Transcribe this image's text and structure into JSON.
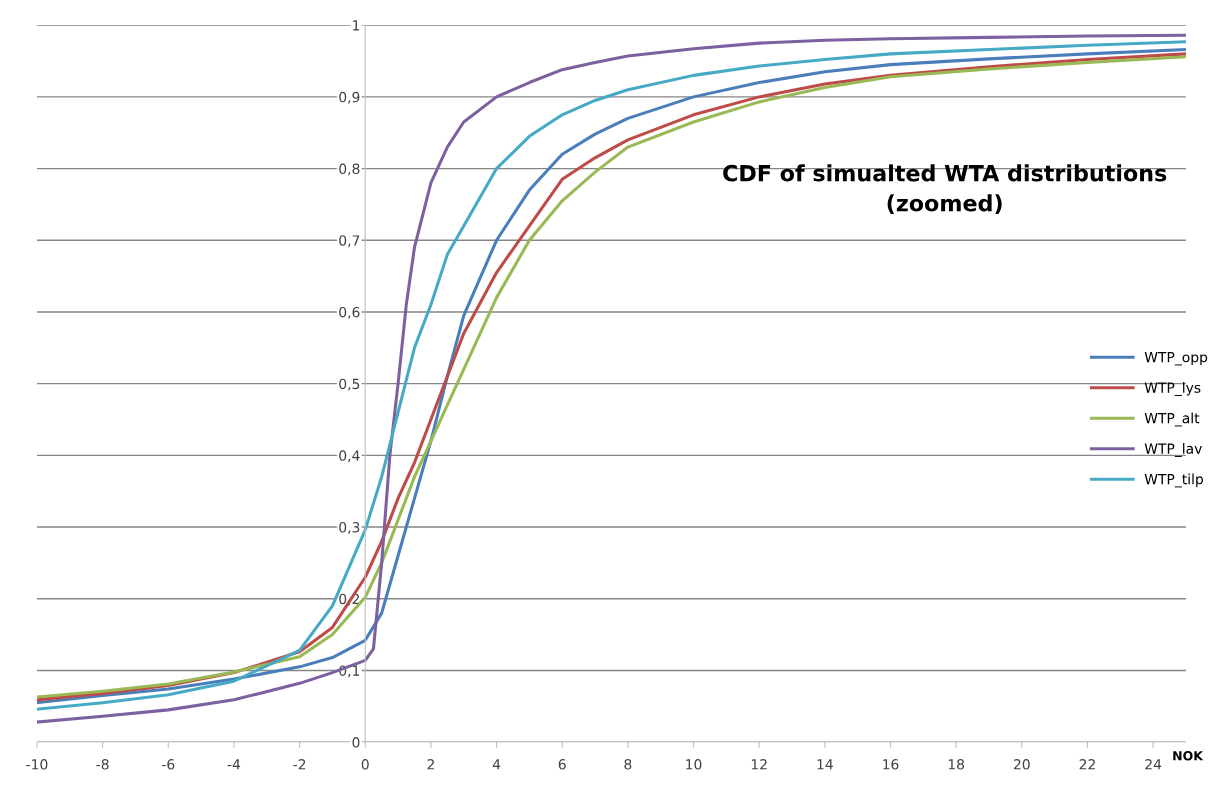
{
  "chart_data": {
    "type": "line",
    "title": "CDF of simualted WTA distributions\n(zoomed)",
    "xlabel": "NOK",
    "xlim": [
      -10,
      25
    ],
    "xticks": [
      -10,
      -8,
      -6,
      -4,
      -2,
      0,
      2,
      4,
      6,
      8,
      10,
      12,
      14,
      16,
      18,
      20,
      22,
      24
    ],
    "ylim": [
      0,
      1
    ],
    "yticks": [
      0,
      {
        "value": 0.1,
        "label": "0,1"
      },
      {
        "value": 0.2,
        "label": "0,2"
      },
      {
        "value": 0.3,
        "label": "0,3"
      },
      {
        "value": 0.4,
        "label": "0,4"
      },
      {
        "value": 0.5,
        "label": "0,5"
      },
      {
        "value": 0.6,
        "label": "0,6"
      },
      {
        "value": 0.7,
        "label": "0,7"
      },
      {
        "value": 0.8,
        "label": "0,8"
      },
      {
        "value": 0.9,
        "label": "0,9"
      },
      1
    ],
    "grid": "y",
    "legend": "right",
    "marker": "none",
    "line_style": "solid",
    "x": [
      -10,
      -8,
      -6,
      -4,
      -2,
      -1,
      0,
      0.5,
      1,
      1.5,
      2,
      2.5,
      3,
      4,
      5,
      6,
      7,
      8,
      10,
      12,
      14,
      16,
      19,
      22,
      25
    ],
    "series": [
      {
        "name": "WTP_opp",
        "color": "#4a7ebb",
        "values": [
          0.055,
          0.065,
          0.074,
          0.088,
          0.105,
          0.118,
          0.142,
          0.18,
          0.26,
          0.34,
          0.42,
          0.51,
          0.595,
          0.7,
          0.77,
          0.82,
          0.848,
          0.87,
          0.9,
          0.92,
          0.935,
          0.945,
          0.953,
          0.96,
          0.966
        ]
      },
      {
        "name": "WTP_lys",
        "color": "#be4b48",
        "values": [
          0.059,
          0.068,
          0.079,
          0.097,
          0.126,
          0.16,
          0.23,
          0.28,
          0.34,
          0.39,
          0.45,
          0.51,
          0.57,
          0.655,
          0.72,
          0.785,
          0.815,
          0.84,
          0.875,
          0.9,
          0.918,
          0.93,
          0.942,
          0.952,
          0.96
        ]
      },
      {
        "name": "WTP_alt",
        "color": "#98b954",
        "values": [
          0.063,
          0.071,
          0.081,
          0.098,
          0.119,
          0.15,
          0.202,
          0.25,
          0.31,
          0.37,
          0.42,
          0.47,
          0.52,
          0.62,
          0.7,
          0.755,
          0.795,
          0.83,
          0.865,
          0.893,
          0.913,
          0.928,
          0.939,
          0.948,
          0.956
        ]
      },
      {
        "name": "WTP_lav",
        "color": "#7d60a0",
        "x": [
          -10,
          -8,
          -6,
          -4,
          -2,
          -1,
          0,
          0.25,
          0.5,
          0.75,
          1,
          1.25,
          1.5,
          2,
          2.5,
          3,
          4,
          5,
          6,
          7,
          8,
          10,
          12,
          14,
          16,
          19,
          22,
          25
        ],
        "values": [
          0.028,
          0.036,
          0.045,
          0.059,
          0.082,
          0.097,
          0.114,
          0.13,
          0.25,
          0.4,
          0.5,
          0.61,
          0.69,
          0.78,
          0.83,
          0.865,
          0.9,
          0.92,
          0.938,
          0.948,
          0.957,
          0.967,
          0.975,
          0.979,
          0.981,
          0.983,
          0.985,
          0.986
        ]
      },
      {
        "name": "WTP_tilp",
        "color": "#46aac5",
        "values": [
          0.046,
          0.055,
          0.066,
          0.085,
          0.128,
          0.19,
          0.296,
          0.37,
          0.46,
          0.55,
          0.61,
          0.68,
          0.72,
          0.8,
          0.845,
          0.875,
          0.895,
          0.91,
          0.93,
          0.943,
          0.952,
          0.96,
          0.966,
          0.972,
          0.977
        ]
      }
    ]
  }
}
